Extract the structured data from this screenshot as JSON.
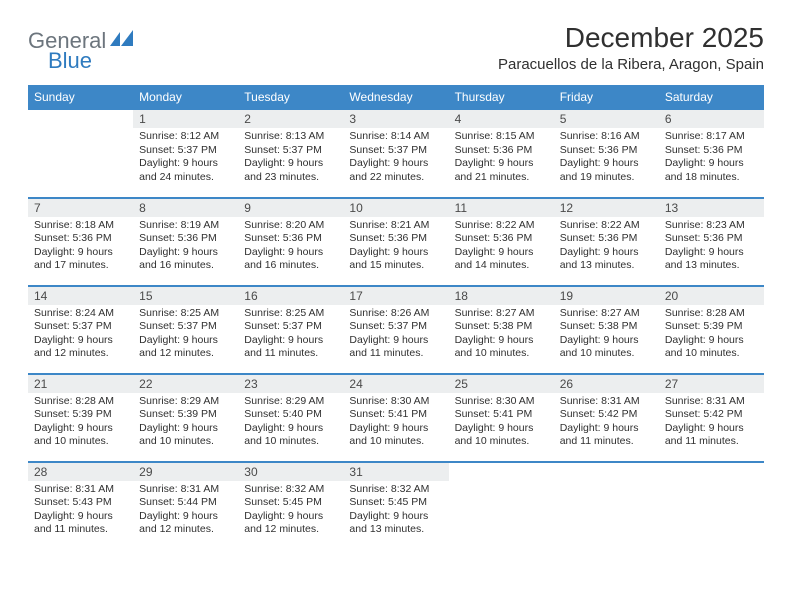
{
  "logo": {
    "part1": "General",
    "part2": "Blue"
  },
  "title": "December 2025",
  "location": "Paracuellos de la Ribera, Aragon, Spain",
  "colors": {
    "header_bg": "#3d87c7",
    "header_text": "#ffffff",
    "daynum_bg": "#eceeef",
    "border": "#3d87c7",
    "logo_gray": "#6c757d",
    "logo_blue": "#2f7bbf",
    "text": "#303030"
  },
  "dayNames": [
    "Sunday",
    "Monday",
    "Tuesday",
    "Wednesday",
    "Thursday",
    "Friday",
    "Saturday"
  ],
  "weeks": [
    [
      {
        "num": "",
        "lines": []
      },
      {
        "num": "1",
        "lines": [
          "Sunrise: 8:12 AM",
          "Sunset: 5:37 PM",
          "Daylight: 9 hours",
          "and 24 minutes."
        ]
      },
      {
        "num": "2",
        "lines": [
          "Sunrise: 8:13 AM",
          "Sunset: 5:37 PM",
          "Daylight: 9 hours",
          "and 23 minutes."
        ]
      },
      {
        "num": "3",
        "lines": [
          "Sunrise: 8:14 AM",
          "Sunset: 5:37 PM",
          "Daylight: 9 hours",
          "and 22 minutes."
        ]
      },
      {
        "num": "4",
        "lines": [
          "Sunrise: 8:15 AM",
          "Sunset: 5:36 PM",
          "Daylight: 9 hours",
          "and 21 minutes."
        ]
      },
      {
        "num": "5",
        "lines": [
          "Sunrise: 8:16 AM",
          "Sunset: 5:36 PM",
          "Daylight: 9 hours",
          "and 19 minutes."
        ]
      },
      {
        "num": "6",
        "lines": [
          "Sunrise: 8:17 AM",
          "Sunset: 5:36 PM",
          "Daylight: 9 hours",
          "and 18 minutes."
        ]
      }
    ],
    [
      {
        "num": "7",
        "lines": [
          "Sunrise: 8:18 AM",
          "Sunset: 5:36 PM",
          "Daylight: 9 hours",
          "and 17 minutes."
        ]
      },
      {
        "num": "8",
        "lines": [
          "Sunrise: 8:19 AM",
          "Sunset: 5:36 PM",
          "Daylight: 9 hours",
          "and 16 minutes."
        ]
      },
      {
        "num": "9",
        "lines": [
          "Sunrise: 8:20 AM",
          "Sunset: 5:36 PM",
          "Daylight: 9 hours",
          "and 16 minutes."
        ]
      },
      {
        "num": "10",
        "lines": [
          "Sunrise: 8:21 AM",
          "Sunset: 5:36 PM",
          "Daylight: 9 hours",
          "and 15 minutes."
        ]
      },
      {
        "num": "11",
        "lines": [
          "Sunrise: 8:22 AM",
          "Sunset: 5:36 PM",
          "Daylight: 9 hours",
          "and 14 minutes."
        ]
      },
      {
        "num": "12",
        "lines": [
          "Sunrise: 8:22 AM",
          "Sunset: 5:36 PM",
          "Daylight: 9 hours",
          "and 13 minutes."
        ]
      },
      {
        "num": "13",
        "lines": [
          "Sunrise: 8:23 AM",
          "Sunset: 5:36 PM",
          "Daylight: 9 hours",
          "and 13 minutes."
        ]
      }
    ],
    [
      {
        "num": "14",
        "lines": [
          "Sunrise: 8:24 AM",
          "Sunset: 5:37 PM",
          "Daylight: 9 hours",
          "and 12 minutes."
        ]
      },
      {
        "num": "15",
        "lines": [
          "Sunrise: 8:25 AM",
          "Sunset: 5:37 PM",
          "Daylight: 9 hours",
          "and 12 minutes."
        ]
      },
      {
        "num": "16",
        "lines": [
          "Sunrise: 8:25 AM",
          "Sunset: 5:37 PM",
          "Daylight: 9 hours",
          "and 11 minutes."
        ]
      },
      {
        "num": "17",
        "lines": [
          "Sunrise: 8:26 AM",
          "Sunset: 5:37 PM",
          "Daylight: 9 hours",
          "and 11 minutes."
        ]
      },
      {
        "num": "18",
        "lines": [
          "Sunrise: 8:27 AM",
          "Sunset: 5:38 PM",
          "Daylight: 9 hours",
          "and 10 minutes."
        ]
      },
      {
        "num": "19",
        "lines": [
          "Sunrise: 8:27 AM",
          "Sunset: 5:38 PM",
          "Daylight: 9 hours",
          "and 10 minutes."
        ]
      },
      {
        "num": "20",
        "lines": [
          "Sunrise: 8:28 AM",
          "Sunset: 5:39 PM",
          "Daylight: 9 hours",
          "and 10 minutes."
        ]
      }
    ],
    [
      {
        "num": "21",
        "lines": [
          "Sunrise: 8:28 AM",
          "Sunset: 5:39 PM",
          "Daylight: 9 hours",
          "and 10 minutes."
        ]
      },
      {
        "num": "22",
        "lines": [
          "Sunrise: 8:29 AM",
          "Sunset: 5:39 PM",
          "Daylight: 9 hours",
          "and 10 minutes."
        ]
      },
      {
        "num": "23",
        "lines": [
          "Sunrise: 8:29 AM",
          "Sunset: 5:40 PM",
          "Daylight: 9 hours",
          "and 10 minutes."
        ]
      },
      {
        "num": "24",
        "lines": [
          "Sunrise: 8:30 AM",
          "Sunset: 5:41 PM",
          "Daylight: 9 hours",
          "and 10 minutes."
        ]
      },
      {
        "num": "25",
        "lines": [
          "Sunrise: 8:30 AM",
          "Sunset: 5:41 PM",
          "Daylight: 9 hours",
          "and 10 minutes."
        ]
      },
      {
        "num": "26",
        "lines": [
          "Sunrise: 8:31 AM",
          "Sunset: 5:42 PM",
          "Daylight: 9 hours",
          "and 11 minutes."
        ]
      },
      {
        "num": "27",
        "lines": [
          "Sunrise: 8:31 AM",
          "Sunset: 5:42 PM",
          "Daylight: 9 hours",
          "and 11 minutes."
        ]
      }
    ],
    [
      {
        "num": "28",
        "lines": [
          "Sunrise: 8:31 AM",
          "Sunset: 5:43 PM",
          "Daylight: 9 hours",
          "and 11 minutes."
        ]
      },
      {
        "num": "29",
        "lines": [
          "Sunrise: 8:31 AM",
          "Sunset: 5:44 PM",
          "Daylight: 9 hours",
          "and 12 minutes."
        ]
      },
      {
        "num": "30",
        "lines": [
          "Sunrise: 8:32 AM",
          "Sunset: 5:45 PM",
          "Daylight: 9 hours",
          "and 12 minutes."
        ]
      },
      {
        "num": "31",
        "lines": [
          "Sunrise: 8:32 AM",
          "Sunset: 5:45 PM",
          "Daylight: 9 hours",
          "and 13 minutes."
        ]
      },
      {
        "num": "",
        "lines": []
      },
      {
        "num": "",
        "lines": []
      },
      {
        "num": "",
        "lines": []
      }
    ]
  ]
}
